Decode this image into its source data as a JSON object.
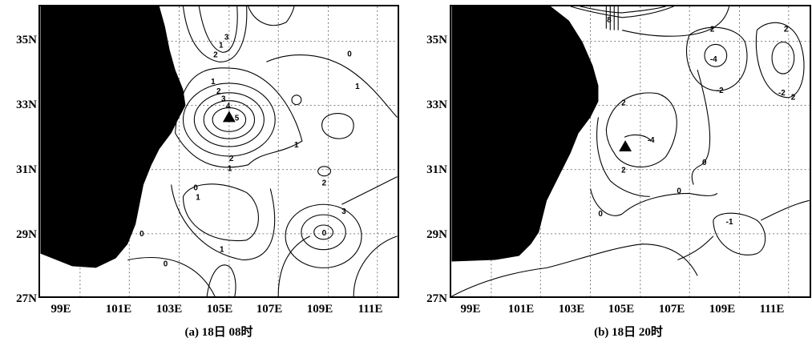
{
  "panels": [
    {
      "caption": "(a) 18日 08时",
      "x_ticks": [
        "99E",
        "101E",
        "103E",
        "105E",
        "107E",
        "109E",
        "111E"
      ],
      "y_ticks": [
        "35N",
        "33N",
        "31N",
        "29N",
        "27N"
      ],
      "contour_labels": [
        "1",
        "2",
        "3",
        "1",
        "2",
        "3",
        "4",
        "5",
        "1",
        "2",
        "1",
        "0",
        "1",
        "0",
        "1",
        "2",
        "3",
        "0",
        "0",
        "0",
        "1"
      ]
    },
    {
      "caption": "(b) 18日 20时",
      "x_ticks": [
        "99E",
        "101E",
        "103E",
        "105E",
        "107E",
        "109E",
        "111E"
      ],
      "y_ticks": [
        "35N",
        "33N",
        "31N",
        "29N",
        "27N"
      ],
      "contour_labels": [
        "8",
        "2",
        "-4",
        "-2",
        "-2",
        "2",
        "2",
        "-4",
        "2",
        "0",
        "0",
        "-1",
        "0",
        "2"
      ]
    }
  ],
  "colors": {
    "terrain_mask": "#000000",
    "grid": "#555555",
    "contour": "#000000"
  },
  "markers": {
    "station": "triangle"
  }
}
